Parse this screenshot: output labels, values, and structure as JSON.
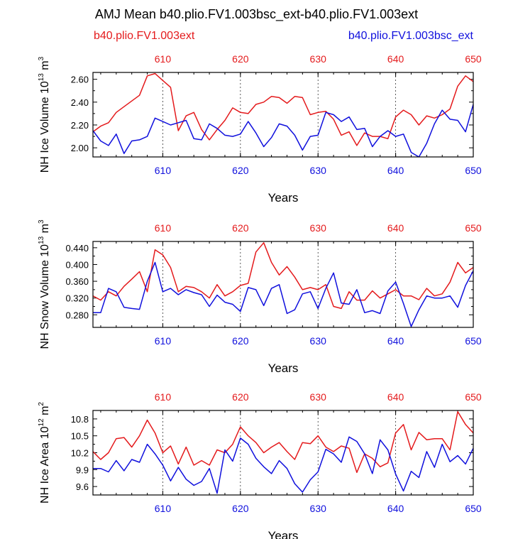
{
  "header": {
    "title": "AMJ Mean b40.plio.FV1.003bsc_ext-b40.plio.FV1.003ext",
    "legend_left": "b40.plio.FV1.003ext",
    "legend_right": "b40.plio.FV1.003bsc_ext"
  },
  "colors": {
    "red": "#e41a1c",
    "blue": "#1010dd",
    "grid": "#333333"
  },
  "chart_data": [
    {
      "type": "line",
      "ylabel_prefix": "NH Ice Volume 10",
      "ylabel_exp": "13",
      "ylabel_unit": " m",
      "ylabel_unit_exp": "3",
      "xlabel": "Years",
      "xlim": [
        601,
        650
      ],
      "ylim": [
        1.92,
        2.66
      ],
      "yticks": [
        2.0,
        2.2,
        2.4,
        2.6
      ],
      "ytick_labels": [
        "2.00",
        "2.20",
        "2.40",
        "2.60"
      ],
      "xticks": [
        610,
        620,
        630,
        640,
        650
      ],
      "top_tick_labels": [
        "610",
        "620",
        "630",
        "640",
        "650"
      ],
      "bottom_tick_labels": [
        "610",
        "620",
        "630",
        "640",
        "650"
      ],
      "x": [
        601,
        602,
        603,
        604,
        605,
        606,
        607,
        608,
        609,
        610,
        611,
        612,
        613,
        614,
        615,
        616,
        617,
        618,
        619,
        620,
        621,
        622,
        623,
        624,
        625,
        626,
        627,
        628,
        629,
        630,
        631,
        632,
        633,
        634,
        635,
        636,
        637,
        638,
        639,
        640,
        641,
        642,
        643,
        644,
        645,
        646,
        647,
        648,
        649,
        650
      ],
      "series": [
        {
          "name": "b40.plio.FV1.003ext",
          "color": "red",
          "values": [
            2.14,
            2.19,
            2.22,
            2.31,
            2.36,
            2.41,
            2.46,
            2.63,
            2.65,
            2.59,
            2.53,
            2.15,
            2.28,
            2.31,
            2.16,
            2.07,
            2.16,
            2.24,
            2.35,
            2.31,
            2.3,
            2.38,
            2.4,
            2.45,
            2.44,
            2.39,
            2.45,
            2.44,
            2.29,
            2.31,
            2.32,
            2.25,
            2.11,
            2.14,
            2.02,
            2.13,
            2.1,
            2.1,
            2.08,
            2.27,
            2.33,
            2.29,
            2.2,
            2.28,
            2.26,
            2.29,
            2.34,
            2.54,
            2.63,
            2.58
          ]
        },
        {
          "name": "b40.plio.FV1.003bsc_ext",
          "color": "blue",
          "values": [
            2.15,
            2.06,
            2.02,
            2.12,
            1.95,
            2.06,
            2.07,
            2.1,
            2.26,
            2.23,
            2.2,
            2.22,
            2.24,
            2.08,
            2.07,
            2.21,
            2.17,
            2.11,
            2.1,
            2.12,
            2.23,
            2.13,
            2.01,
            2.09,
            2.21,
            2.19,
            2.11,
            1.98,
            2.1,
            2.11,
            2.31,
            2.29,
            2.23,
            2.27,
            2.16,
            2.17,
            2.01,
            2.1,
            2.15,
            2.1,
            2.12,
            1.96,
            1.92,
            2.04,
            2.21,
            2.33,
            2.25,
            2.24,
            2.14,
            2.38
          ]
        }
      ]
    },
    {
      "type": "line",
      "ylabel_prefix": "NH Snow Volume 10",
      "ylabel_exp": "13",
      "ylabel_unit": " m",
      "ylabel_unit_exp": "3",
      "xlabel": "Years",
      "xlim": [
        601,
        650
      ],
      "ylim": [
        0.25,
        0.455
      ],
      "yticks": [
        0.28,
        0.32,
        0.36,
        0.4,
        0.44
      ],
      "ytick_labels": [
        "0.280",
        "0.320",
        "0.360",
        "0.400",
        "0.440"
      ],
      "xticks": [
        610,
        620,
        630,
        640,
        650
      ],
      "top_tick_labels": [
        "610",
        "620",
        "630",
        "640",
        "650"
      ],
      "bottom_tick_labels": [
        "610",
        "620",
        "630",
        "640",
        "650"
      ],
      "x": [
        601,
        602,
        603,
        604,
        605,
        606,
        607,
        608,
        609,
        610,
        611,
        612,
        613,
        614,
        615,
        616,
        617,
        618,
        619,
        620,
        621,
        622,
        623,
        624,
        625,
        626,
        627,
        628,
        629,
        630,
        631,
        632,
        633,
        634,
        635,
        636,
        637,
        638,
        639,
        640,
        641,
        642,
        643,
        644,
        645,
        646,
        647,
        648,
        649,
        650
      ],
      "series": [
        {
          "name": "b40.plio.FV1.003ext",
          "color": "red",
          "values": [
            0.325,
            0.315,
            0.335,
            0.325,
            0.348,
            0.365,
            0.383,
            0.335,
            0.435,
            0.423,
            0.393,
            0.335,
            0.348,
            0.345,
            0.335,
            0.32,
            0.352,
            0.325,
            0.335,
            0.35,
            0.355,
            0.43,
            0.452,
            0.405,
            0.375,
            0.395,
            0.37,
            0.34,
            0.345,
            0.34,
            0.352,
            0.3,
            0.295,
            0.335,
            0.315,
            0.315,
            0.337,
            0.32,
            0.33,
            0.34,
            0.325,
            0.325,
            0.316,
            0.343,
            0.325,
            0.33,
            0.358,
            0.405,
            0.38,
            0.393
          ]
        },
        {
          "name": "b40.plio.FV1.003bsc_ext",
          "color": "blue",
          "values": [
            0.285,
            0.285,
            0.343,
            0.335,
            0.298,
            0.295,
            0.293,
            0.36,
            0.405,
            0.335,
            0.343,
            0.328,
            0.34,
            0.333,
            0.328,
            0.3,
            0.327,
            0.31,
            0.305,
            0.288,
            0.345,
            0.34,
            0.302,
            0.343,
            0.352,
            0.283,
            0.292,
            0.33,
            0.335,
            0.295,
            0.343,
            0.38,
            0.308,
            0.305,
            0.34,
            0.285,
            0.29,
            0.283,
            0.337,
            0.358,
            0.307,
            0.252,
            0.292,
            0.325,
            0.32,
            0.32,
            0.325,
            0.298,
            0.35,
            0.385
          ]
        }
      ]
    },
    {
      "type": "line",
      "ylabel_prefix": "NH Ice Area 10",
      "ylabel_exp": "12",
      "ylabel_unit": " m",
      "ylabel_unit_exp": "2",
      "xlabel": "Years",
      "xlim": [
        601,
        650
      ],
      "ylim": [
        9.45,
        10.95
      ],
      "yticks": [
        9.6,
        9.9,
        10.2,
        10.5,
        10.8
      ],
      "ytick_labels": [
        "9.6",
        "9.9",
        "10.2",
        "10.5",
        "10.8"
      ],
      "xticks": [
        610,
        620,
        630,
        640,
        650
      ],
      "top_tick_labels": [
        "610",
        "620",
        "630",
        "640",
        "650"
      ],
      "bottom_tick_labels": [
        "610",
        "620",
        "630",
        "640",
        "650"
      ],
      "x": [
        601,
        602,
        603,
        604,
        605,
        606,
        607,
        608,
        609,
        610,
        611,
        612,
        613,
        614,
        615,
        616,
        617,
        618,
        619,
        620,
        621,
        622,
        623,
        624,
        625,
        626,
        627,
        628,
        629,
        630,
        631,
        632,
        633,
        634,
        635,
        636,
        637,
        638,
        639,
        640,
        641,
        642,
        643,
        644,
        645,
        646,
        647,
        648,
        649,
        650
      ],
      "series": [
        {
          "name": "b40.plio.FV1.003ext",
          "color": "red",
          "values": [
            10.22,
            10.08,
            10.2,
            10.45,
            10.47,
            10.3,
            10.5,
            10.78,
            10.55,
            10.2,
            10.32,
            10.0,
            10.3,
            9.98,
            10.06,
            9.98,
            10.25,
            10.2,
            10.35,
            10.66,
            10.5,
            10.38,
            10.2,
            10.3,
            10.38,
            10.22,
            10.08,
            10.38,
            10.36,
            10.5,
            10.3,
            10.22,
            10.32,
            10.28,
            9.85,
            10.18,
            10.1,
            9.95,
            10.02,
            10.55,
            10.7,
            10.25,
            10.56,
            10.43,
            10.45,
            10.45,
            10.25,
            10.93,
            10.7,
            10.55
          ]
        },
        {
          "name": "b40.plio.FV1.003bsc_ext",
          "color": "blue",
          "values": [
            9.92,
            9.92,
            9.86,
            10.06,
            9.88,
            10.08,
            10.03,
            10.35,
            10.18,
            9.98,
            9.7,
            9.94,
            9.73,
            9.62,
            9.69,
            9.92,
            9.48,
            10.25,
            10.05,
            10.46,
            10.35,
            10.1,
            9.95,
            9.83,
            10.06,
            9.92,
            9.65,
            9.5,
            9.72,
            9.86,
            10.26,
            10.18,
            10.03,
            10.48,
            10.4,
            10.18,
            9.83,
            10.43,
            10.25,
            9.82,
            9.52,
            9.87,
            9.76,
            10.22,
            9.94,
            10.35,
            10.04,
            10.15,
            10.0,
            10.28
          ]
        }
      ]
    }
  ]
}
